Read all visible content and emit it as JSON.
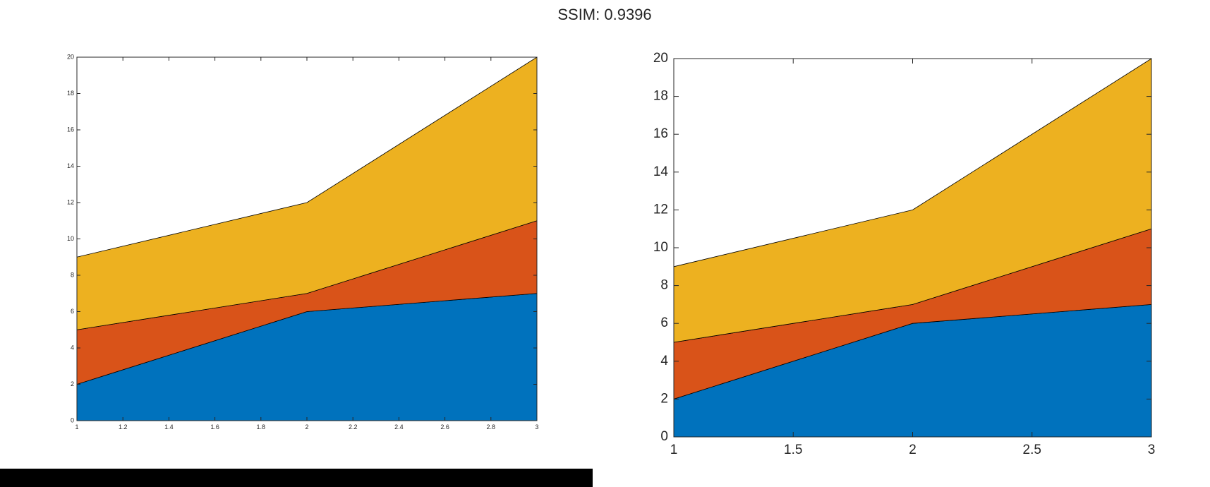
{
  "figure_title": "SSIM: 0.9396",
  "colors": {
    "series1": "#0072bd",
    "series2": "#d95319",
    "series3": "#edb120",
    "axes": "#262626",
    "bar": "#000000"
  },
  "chart_data": [
    {
      "type": "area",
      "stacked": true,
      "x": [
        1,
        2,
        3
      ],
      "series": [
        {
          "values": [
            2,
            6,
            7
          ]
        },
        {
          "values": [
            3,
            1,
            4
          ]
        },
        {
          "values": [
            4,
            5,
            9
          ]
        }
      ],
      "xlim": [
        1,
        3
      ],
      "ylim": [
        0,
        20
      ],
      "x_ticks": [
        "1",
        "1.2",
        "1.4",
        "1.6",
        "1.8",
        "2",
        "2.2",
        "2.4",
        "2.6",
        "2.8",
        "3"
      ],
      "y_ticks": [
        "0",
        "2",
        "4",
        "6",
        "8",
        "10",
        "12",
        "14",
        "16",
        "18",
        "20"
      ],
      "grid": false,
      "legend": "none"
    },
    {
      "type": "area",
      "stacked": true,
      "x": [
        1,
        2,
        3
      ],
      "series": [
        {
          "values": [
            2,
            6,
            7
          ]
        },
        {
          "values": [
            3,
            1,
            4
          ]
        },
        {
          "values": [
            4,
            5,
            9
          ]
        }
      ],
      "xlim": [
        1,
        3
      ],
      "ylim": [
        0,
        20
      ],
      "x_ticks": [
        "1",
        "1.5",
        "2",
        "2.5",
        "3"
      ],
      "y_ticks": [
        "0",
        "2",
        "4",
        "6",
        "8",
        "10",
        "12",
        "14",
        "16",
        "18",
        "20"
      ],
      "grid": false,
      "legend": "none"
    }
  ]
}
